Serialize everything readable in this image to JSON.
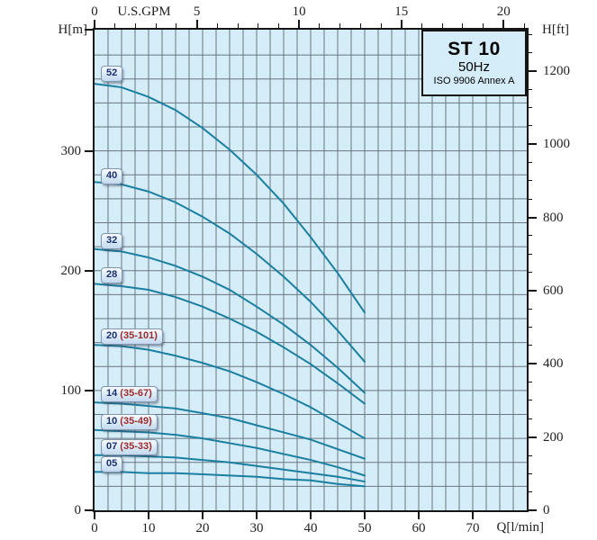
{
  "header": {
    "model": "ST 10",
    "frequency": "50Hz",
    "standard": "ISO 9906 Annex A"
  },
  "colors": {
    "curve": "#1a7fa0",
    "grid": "#68767f",
    "plot_bg": "#d5edf9",
    "axis": "#151515",
    "label_number": "#1b2f6e",
    "label_suffix": "#9e2b2b"
  },
  "chart_data": {
    "type": "line",
    "title": "ST 10",
    "subtitle": "50Hz",
    "note": "ISO 9906 Annex A",
    "xlabel": "Q[l/min]",
    "x2label": "U.S.GPM",
    "ylabel_left": "H[m]",
    "ylabel_right": "H[ft]",
    "xlim_lmin": [
      0,
      80
    ],
    "x2lim_gpm": [
      0,
      21.1
    ],
    "ylim_m": [
      0,
      401
    ],
    "ylim_ft": [
      0,
      1314
    ],
    "x_ticks_lmin": [
      0,
      10,
      20,
      30,
      40,
      50,
      60,
      70
    ],
    "x2_ticks_gpm": [
      0,
      5,
      10,
      15,
      20
    ],
    "y_ticks_m": [
      0,
      100,
      200,
      300
    ],
    "y_ticks_ft": [
      0,
      200,
      400,
      600,
      800,
      1000,
      1200
    ],
    "minor_ticks": {
      "top_step_gpm": 1,
      "top_max_gpm": 21,
      "right_step_ft": 50,
      "right_max_ft": 1300
    },
    "grid": {
      "vertical_every_lmin": 2.5,
      "horizontal_every_m": 20,
      "legend": "none"
    },
    "x_lmin": [
      0,
      5,
      10,
      15,
      20,
      25,
      30,
      35,
      40,
      45,
      50
    ],
    "series": [
      {
        "name": "52",
        "label_suffix": "",
        "label_at_h_m": 364,
        "values_h_m": [
          356,
          353,
          345,
          334,
          319,
          301,
          280,
          256,
          228,
          198,
          165
        ]
      },
      {
        "name": "40",
        "label_suffix": "",
        "label_at_h_m": 279,
        "values_h_m": [
          274,
          272,
          266,
          257,
          245,
          231,
          214,
          195,
          174,
          150,
          124
        ]
      },
      {
        "name": "32",
        "label_suffix": "",
        "label_at_h_m": 225,
        "values_h_m": [
          218,
          216,
          211,
          204,
          195,
          184,
          170,
          155,
          138,
          119,
          98
        ]
      },
      {
        "name": "28",
        "label_suffix": "",
        "label_at_h_m": 196,
        "values_h_m": [
          189,
          187,
          184,
          178,
          170,
          160,
          149,
          136,
          122,
          106,
          89
        ]
      },
      {
        "name": "20",
        "label_suffix": "(35-101)",
        "label_at_h_m": 145,
        "values_h_m": [
          138,
          137,
          134,
          129,
          123,
          116,
          107,
          97,
          86,
          73,
          60
        ]
      },
      {
        "name": "14",
        "label_suffix": "(35-67)",
        "label_at_h_m": 97,
        "values_h_m": [
          90,
          89,
          87,
          85,
          81,
          77,
          71,
          65,
          59,
          51,
          43
        ]
      },
      {
        "name": "10",
        "label_suffix": "(35-49)",
        "label_at_h_m": 73.5,
        "values_h_m": [
          67,
          66,
          65,
          63,
          60,
          56,
          52,
          47,
          42,
          36,
          29
        ]
      },
      {
        "name": "07",
        "label_suffix": "(35-33)",
        "label_at_h_m": 52.5,
        "values_h_m": [
          46,
          46,
          45,
          44,
          42,
          40,
          37,
          34,
          31,
          28,
          24
        ]
      },
      {
        "name": "05",
        "label_suffix": "",
        "label_at_h_m": 38.5,
        "values_h_m": [
          32,
          32,
          31,
          31,
          30,
          29,
          28,
          26,
          25,
          22,
          20
        ]
      }
    ]
  }
}
